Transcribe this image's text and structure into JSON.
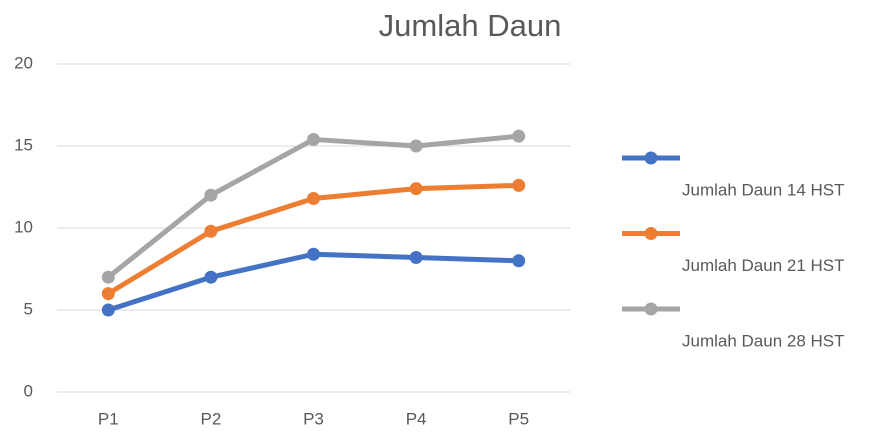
{
  "chart_data": {
    "type": "line",
    "title": "Jumlah Daun",
    "categories": [
      "P1",
      "P2",
      "P3",
      "P4",
      "P5"
    ],
    "series": [
      {
        "name": "Jumlah Daun 14 HST",
        "color": "#4472c4",
        "values": [
          5,
          7,
          8.4,
          8.2,
          8
        ]
      },
      {
        "name": "Jumlah Daun 21 HST",
        "color": "#ed7d31",
        "values": [
          6,
          9.8,
          11.8,
          12.4,
          12.6
        ]
      },
      {
        "name": "Jumlah Daun 28 HST",
        "color": "#a5a5a5",
        "values": [
          7,
          12,
          15.4,
          15,
          15.6
        ]
      }
    ],
    "ylim": [
      0,
      20
    ],
    "yticks": [
      0,
      5,
      10,
      15,
      20
    ],
    "grid": true,
    "legend": "right"
  }
}
